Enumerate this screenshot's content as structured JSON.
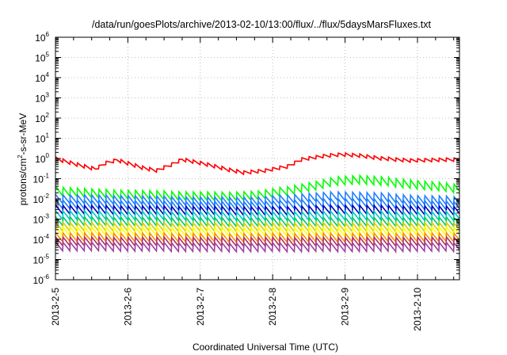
{
  "chart_data": {
    "type": "line",
    "title": "/data/run/goesPlots/archive/2013-02-10/13:00/flux/../flux/5daysMarsFluxes.txt",
    "xlabel": "Coordinated Universal Time (UTC)",
    "ylabel": {
      "base": "protons/cm",
      "sup": "2",
      "rest": "-s-sr-MeV"
    },
    "y_scale": "log",
    "ylim_exponents": [
      -6,
      6
    ],
    "y_tick_exponents": [
      6,
      5,
      4,
      3,
      2,
      1,
      0,
      -1,
      -2,
      -3,
      -4,
      -5,
      -6
    ],
    "y_tick_base": "10",
    "x_tick_labels": [
      "2013-2-5",
      "2013-2-6",
      "2013-2-7",
      "2013-2-8",
      "2013-2-9",
      "2013-2-10"
    ],
    "x_tick_days": [
      0,
      1,
      2,
      3,
      4,
      5
    ],
    "xlim_days": [
      0,
      5.58
    ],
    "grid": true,
    "legend": "none",
    "series": [
      {
        "color": "#ff0000",
        "sawtooth": true,
        "period_days": 0.1,
        "points": [
          [
            0.0,
            1.0
          ],
          [
            0.3,
            0.5
          ],
          [
            0.55,
            0.3
          ],
          [
            0.7,
            0.6
          ],
          [
            0.85,
            0.85
          ],
          [
            1.2,
            0.35
          ],
          [
            1.4,
            0.25
          ],
          [
            1.6,
            0.5
          ],
          [
            1.75,
            0.9
          ],
          [
            2.05,
            0.55
          ],
          [
            2.35,
            0.3
          ],
          [
            2.6,
            0.2
          ],
          [
            2.9,
            0.25
          ],
          [
            3.2,
            0.4
          ],
          [
            3.4,
            0.9
          ],
          [
            3.7,
            1.3
          ],
          [
            3.95,
            1.6
          ],
          [
            4.2,
            1.4
          ],
          [
            4.5,
            1.0
          ],
          [
            4.9,
            0.8
          ],
          [
            5.3,
            0.85
          ],
          [
            5.58,
            0.9
          ]
        ]
      },
      {
        "color": "#00ff00",
        "sawtooth": true,
        "period_days": 0.1,
        "points": [
          [
            0.0,
            0.025
          ],
          [
            0.6,
            0.018
          ],
          [
            1.2,
            0.016
          ],
          [
            1.8,
            0.014
          ],
          [
            2.3,
            0.013
          ],
          [
            2.8,
            0.015
          ],
          [
            3.2,
            0.025
          ],
          [
            3.6,
            0.045
          ],
          [
            3.9,
            0.08
          ],
          [
            4.2,
            0.09
          ],
          [
            4.6,
            0.07
          ],
          [
            5.0,
            0.05
          ],
          [
            5.3,
            0.04
          ],
          [
            5.58,
            0.032
          ]
        ]
      },
      {
        "color": "#1f7fff",
        "sawtooth": true,
        "period_days": 0.1,
        "points": [
          [
            0.0,
            0.01
          ],
          [
            1.0,
            0.009
          ],
          [
            2.0,
            0.0075
          ],
          [
            2.8,
            0.0075
          ],
          [
            3.4,
            0.011
          ],
          [
            3.9,
            0.014
          ],
          [
            4.5,
            0.012
          ],
          [
            5.0,
            0.009
          ],
          [
            5.58,
            0.008
          ]
        ]
      },
      {
        "color": "#1f7fff",
        "sawtooth": true,
        "period_days": 0.1,
        "points": [
          [
            0.0,
            0.0055
          ],
          [
            1.0,
            0.005
          ],
          [
            2.0,
            0.0045
          ],
          [
            2.8,
            0.0045
          ],
          [
            3.5,
            0.006
          ],
          [
            4.2,
            0.0065
          ],
          [
            5.0,
            0.005
          ],
          [
            5.58,
            0.0045
          ]
        ]
      },
      {
        "color": "#0000bb",
        "sawtooth": true,
        "period_days": 0.1,
        "points": [
          [
            0.0,
            0.003
          ],
          [
            1.5,
            0.0027
          ],
          [
            3.0,
            0.0025
          ],
          [
            4.0,
            0.003
          ],
          [
            5.58,
            0.0026
          ]
        ]
      },
      {
        "color": "#00c8c8",
        "sawtooth": true,
        "period_days": 0.1,
        "points": [
          [
            0.0,
            0.0016
          ],
          [
            2.5,
            0.0014
          ],
          [
            4.0,
            0.0015
          ],
          [
            5.58,
            0.0014
          ]
        ]
      },
      {
        "color": "#00cc66",
        "sawtooth": true,
        "period_days": 0.1,
        "points": [
          [
            0.0,
            0.0008
          ],
          [
            2.5,
            0.0007
          ],
          [
            5.58,
            0.00075
          ]
        ]
      },
      {
        "color": "#d0d000",
        "sawtooth": true,
        "period_days": 0.1,
        "points": [
          [
            0.0,
            0.00042
          ],
          [
            2.5,
            0.0004
          ],
          [
            5.58,
            0.0004
          ]
        ]
      },
      {
        "color": "#ffff00",
        "sawtooth": true,
        "period_days": 0.1,
        "points": [
          [
            0.0,
            0.00025
          ],
          [
            2.5,
            0.00023
          ],
          [
            5.58,
            0.00024
          ]
        ]
      },
      {
        "color": "#ff8c00",
        "sawtooth": true,
        "period_days": 0.1,
        "points": [
          [
            0.0,
            0.00013
          ],
          [
            2.5,
            0.00012
          ],
          [
            5.58,
            0.000125
          ]
        ]
      },
      {
        "color": "#b03060",
        "sawtooth": true,
        "period_days": 0.1,
        "points": [
          [
            0.0,
            8e-05
          ],
          [
            2.5,
            7.5e-05
          ],
          [
            5.58,
            7.8e-05
          ]
        ]
      },
      {
        "color": "#a040a0",
        "sawtooth": true,
        "period_days": 0.1,
        "points": [
          [
            0.0,
            4.5e-05
          ],
          [
            2.5,
            4e-05
          ],
          [
            5.58,
            4.2e-05
          ]
        ]
      }
    ]
  }
}
